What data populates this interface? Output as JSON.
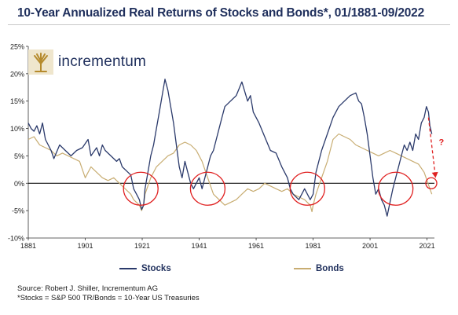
{
  "title": "10-Year Annualized Real Returns of Stocks and Bonds*, 01/1881-09/2022",
  "logo": {
    "text": "incrementum"
  },
  "legend": [
    {
      "label": "Stocks",
      "color": "#2b3a6b"
    },
    {
      "label": "Bonds",
      "color": "#c8ad72"
    }
  ],
  "source": {
    "line1": "Source: Robert J. Shiller, Incrementum AG",
    "line2": "*Stocks = S&P 500 TR/Bonds = 10-Year US Treasuries"
  },
  "annotation": {
    "question_mark": "?"
  },
  "colors": {
    "stocks": "#2b3a6b",
    "bonds": "#c8ad72",
    "circle": "#e02020",
    "arrow": "#e02020"
  },
  "chart_data": {
    "type": "line",
    "title": "10-Year Annualized Real Returns of Stocks and Bonds*, 01/1881-09/2022",
    "xlabel": "",
    "ylabel": "",
    "xlim": [
      1881,
      2023.6
    ],
    "ylim": [
      -10,
      25
    ],
    "x_ticks": [
      1881,
      1901,
      1921,
      1941,
      1961,
      1981,
      2001,
      2021
    ],
    "y_ticks": [
      {
        "value": 25,
        "label": "25%"
      },
      {
        "value": 20,
        "label": "20%"
      },
      {
        "value": 15,
        "label": "15%"
      },
      {
        "value": 10,
        "label": "10%"
      },
      {
        "value": 5,
        "label": "5%"
      },
      {
        "value": 0,
        "label": "0%"
      },
      {
        "value": -5,
        "label": "-5%"
      },
      {
        "value": -10,
        "label": "-10%"
      }
    ],
    "series": [
      {
        "name": "Stocks",
        "x": [
          1881,
          1882,
          1883,
          1884,
          1885,
          1886,
          1887,
          1888,
          1889,
          1890,
          1892,
          1894,
          1896,
          1898,
          1900,
          1902,
          1903,
          1905,
          1906,
          1907,
          1908,
          1910,
          1912,
          1913,
          1914,
          1916,
          1917,
          1918,
          1919,
          1920,
          1920.8,
          1921.5,
          1922,
          1923,
          1924,
          1925,
          1926,
          1927,
          1928,
          1929,
          1930,
          1931,
          1932,
          1933,
          1934,
          1935,
          1936,
          1937,
          1938,
          1939,
          1940,
          1941,
          1942,
          1943,
          1944,
          1945,
          1946,
          1947,
          1948,
          1949,
          1950,
          1952,
          1954,
          1956,
          1958,
          1959,
          1960,
          1962,
          1964,
          1966,
          1968,
          1970,
          1972,
          1973,
          1974,
          1975,
          1976,
          1977,
          1978,
          1979,
          1980,
          1981,
          1982,
          1984,
          1986,
          1988,
          1990,
          1992,
          1994,
          1996,
          1997,
          1998,
          1999,
          2000,
          2001,
          2002,
          2003,
          2004,
          2005,
          2006,
          2007,
          2008,
          2009,
          2010,
          2011,
          2012,
          2013,
          2014,
          2015,
          2016,
          2017,
          2018,
          2019,
          2020,
          2020.8,
          2021.5,
          2022,
          2022.7
        ],
        "values": [
          11,
          10,
          9.5,
          10.5,
          9,
          11,
          8,
          7,
          6,
          4.5,
          7,
          6,
          5,
          6,
          6.5,
          8,
          5,
          6.5,
          5,
          7,
          6,
          5,
          4,
          4.5,
          3,
          2,
          1.5,
          -1,
          -2,
          -3,
          -4.8,
          -4,
          -1,
          2,
          5,
          7,
          10,
          13,
          16,
          19,
          17,
          14,
          11,
          7,
          3,
          1,
          4,
          2,
          0,
          -1,
          0,
          1,
          -1,
          1,
          3,
          5,
          6,
          8,
          10,
          12,
          14,
          15,
          16,
          18.5,
          15,
          16,
          13,
          11,
          8.5,
          6,
          5.5,
          3,
          1,
          -1,
          -2,
          -2.5,
          -3,
          -2,
          -1,
          -2,
          -3,
          -2,
          2,
          6,
          9,
          12,
          14,
          15,
          16,
          16.5,
          15,
          14.5,
          12,
          9,
          5,
          1,
          -2,
          -1,
          -3,
          -4,
          -6,
          -3.5,
          -1,
          1,
          3,
          5,
          7,
          6,
          7.5,
          6,
          9,
          8,
          11,
          12,
          14,
          13,
          10.5,
          9
        ]
      },
      {
        "name": "Bonds",
        "x": [
          1881,
          1883,
          1885,
          1887,
          1889,
          1891,
          1893,
          1895,
          1897,
          1899,
          1901,
          1903,
          1905,
          1907,
          1909,
          1911,
          1913,
          1915,
          1917,
          1918,
          1919,
          1920,
          1920.8,
          1921.5,
          1922,
          1924,
          1926,
          1928,
          1930,
          1932,
          1934,
          1936,
          1938,
          1940,
          1942,
          1944,
          1946,
          1948,
          1950,
          1952,
          1954,
          1956,
          1958,
          1960,
          1962,
          1964,
          1966,
          1968,
          1970,
          1972,
          1974,
          1976,
          1978,
          1980,
          1980.6,
          1981,
          1982,
          1984,
          1986,
          1988,
          1990,
          1992,
          1994,
          1996,
          1998,
          2000,
          2002,
          2004,
          2006,
          2008,
          2010,
          2012,
          2014,
          2016,
          2018,
          2020,
          2021,
          2022,
          2022.7
        ],
        "values": [
          8,
          8.5,
          7,
          6.5,
          6,
          5,
          5.5,
          5,
          4.5,
          4,
          1,
          3,
          2,
          1,
          0.5,
          1,
          0,
          -1,
          -2,
          -3,
          -3.5,
          -4,
          -5,
          -4,
          -2,
          1,
          3,
          4,
          5,
          5.5,
          7,
          7.5,
          7,
          6,
          4,
          1,
          -2,
          -3,
          -4,
          -3.5,
          -3,
          -2,
          -1,
          -1.5,
          -1,
          0,
          -0.5,
          -1,
          -1.5,
          -1,
          -2,
          -2.5,
          -3,
          -4,
          -5.2,
          -4,
          -2,
          1,
          4,
          8,
          9,
          8.5,
          8,
          7,
          6.5,
          6,
          5.5,
          5,
          5.5,
          6,
          5.5,
          5,
          4.5,
          4,
          3.5,
          2,
          0.5,
          -1,
          -2
        ]
      }
    ],
    "highlight_circles": [
      1920.5,
      1944,
      1979,
      2010,
      2022.5
    ],
    "forecast_arrow": {
      "from": [
        2021.5,
        12
      ],
      "to": [
        2024,
        1
      ]
    }
  }
}
